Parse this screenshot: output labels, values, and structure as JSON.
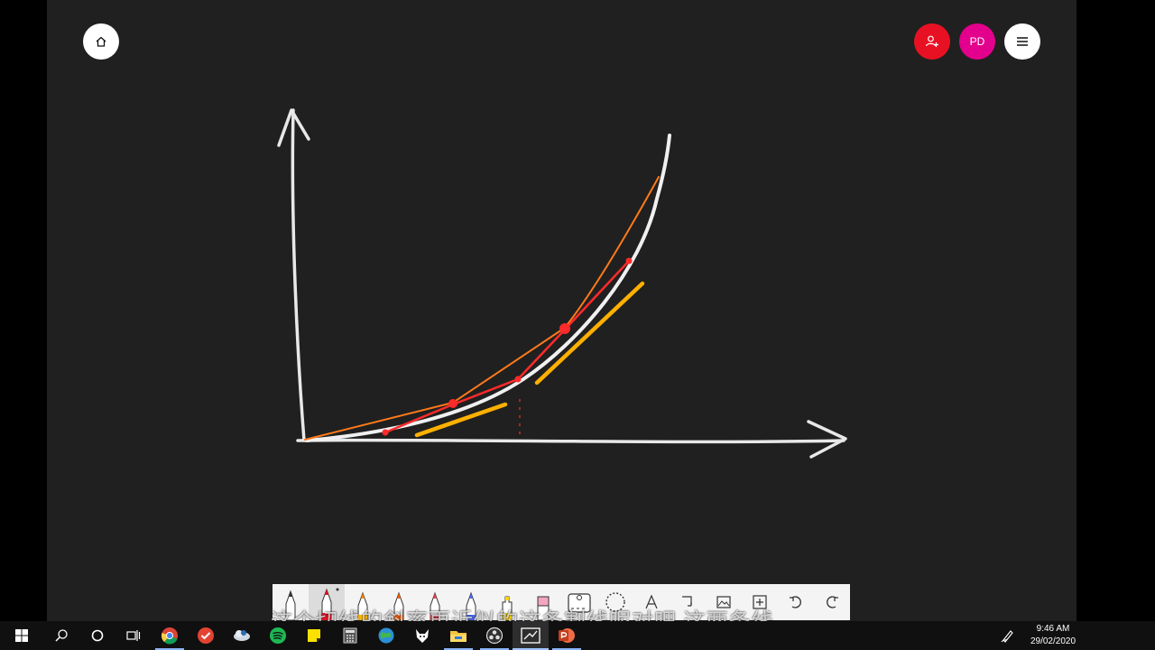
{
  "app": {
    "canvas_bg": "#202020",
    "top_left": {
      "home_icon": "home-icon"
    },
    "top_right": {
      "share_icon": "add-person-icon",
      "avatar_initials": "PD",
      "menu_icon": "hamburger-menu-icon"
    }
  },
  "toolbar": {
    "tools": [
      {
        "name": "ballpoint-pen",
        "color": "#ffffff"
      },
      {
        "name": "red-pen",
        "color": "#e81123",
        "selected": true
      },
      {
        "name": "orange-pen",
        "color": "#ff8c00"
      },
      {
        "name": "orange-pen-2",
        "color": "#f7630c"
      },
      {
        "name": "red-pen-2",
        "color": "#e74856"
      },
      {
        "name": "blue-pen",
        "color": "#4f6bed"
      },
      {
        "name": "yellow-highlighter",
        "color": "#ffd500"
      },
      {
        "name": "pink-eraser",
        "color": "#f4a6c0"
      },
      {
        "name": "ruler-tool"
      },
      {
        "name": "lasso-select"
      },
      {
        "name": "text-tool"
      },
      {
        "name": "shape-tool"
      },
      {
        "name": "image-tool"
      },
      {
        "name": "add-tool"
      },
      {
        "name": "undo"
      },
      {
        "name": "redo"
      }
    ]
  },
  "subtitle": "这个切线的斜率更近似的这条割线呢对吧 这两条线",
  "taskbar": {
    "apps": [
      "windows-start",
      "search",
      "cortana",
      "task-view",
      "chrome",
      "todo",
      "onedrive",
      "spotify",
      "sticky-notes",
      "calculator",
      "photos",
      "folx",
      "file-explorer",
      "obs",
      "whiteboard",
      "powerpoint"
    ],
    "time": "9:46 AM",
    "date": "29/02/2020"
  },
  "ink_colors": {
    "axes": "#e8e8e8",
    "curve": "#f0f0f0",
    "orange_secant": "#ff7a1a",
    "red_secant": "#ff2a2a",
    "tangent": "#ffb000"
  }
}
